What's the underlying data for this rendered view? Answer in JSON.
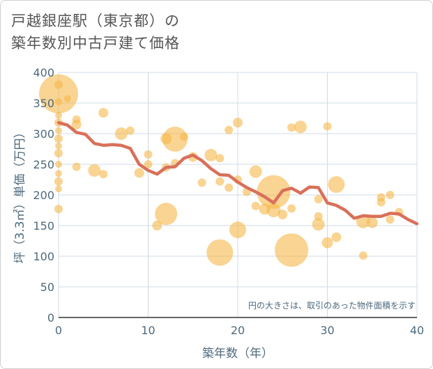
{
  "chart_data": {
    "type": "scatter",
    "title_lines": [
      "戸越銀座駅（東京都）の",
      "築年数別中古戸建て価格"
    ],
    "xlabel": "築年数（年）",
    "ylabel": "坪（3.3㎡）単価（万円）",
    "xlim": [
      0,
      40
    ],
    "ylim": [
      0,
      400
    ],
    "xticks": [
      0,
      10,
      20,
      30,
      40
    ],
    "yticks": [
      0,
      50,
      100,
      150,
      200,
      250,
      300,
      350,
      400
    ],
    "grid": true,
    "note": "円の大きさは、取引のあった物件面積を示す",
    "colors": {
      "bubble": "#f5b84a",
      "line": "#d9705a",
      "grid": "#cfdbe6",
      "text": "#4e6a7e"
    },
    "bubbles": [
      {
        "x": 0,
        "y": 365,
        "r": 28
      },
      {
        "x": 0,
        "y": 380,
        "r": 6
      },
      {
        "x": 0,
        "y": 352,
        "r": 5
      },
      {
        "x": 0,
        "y": 330,
        "r": 5
      },
      {
        "x": 0,
        "y": 318,
        "r": 6
      },
      {
        "x": 0,
        "y": 305,
        "r": 5
      },
      {
        "x": 0,
        "y": 292,
        "r": 6
      },
      {
        "x": 0,
        "y": 280,
        "r": 5
      },
      {
        "x": 0,
        "y": 268,
        "r": 6
      },
      {
        "x": 0,
        "y": 250,
        "r": 5
      },
      {
        "x": 0,
        "y": 235,
        "r": 5
      },
      {
        "x": 0,
        "y": 222,
        "r": 6
      },
      {
        "x": 0,
        "y": 210,
        "r": 5
      },
      {
        "x": 0,
        "y": 177,
        "r": 6
      },
      {
        "x": 1,
        "y": 357,
        "r": 5
      },
      {
        "x": 2,
        "y": 323,
        "r": 6
      },
      {
        "x": 2,
        "y": 315,
        "r": 7
      },
      {
        "x": 2,
        "y": 246,
        "r": 6
      },
      {
        "x": 4,
        "y": 240,
        "r": 9
      },
      {
        "x": 5,
        "y": 334,
        "r": 7
      },
      {
        "x": 5,
        "y": 234,
        "r": 6
      },
      {
        "x": 7,
        "y": 300,
        "r": 9
      },
      {
        "x": 8,
        "y": 305,
        "r": 6
      },
      {
        "x": 9,
        "y": 236,
        "r": 7
      },
      {
        "x": 10,
        "y": 266,
        "r": 6
      },
      {
        "x": 10,
        "y": 250,
        "r": 6
      },
      {
        "x": 11,
        "y": 150,
        "r": 7
      },
      {
        "x": 12,
        "y": 292,
        "r": 8
      },
      {
        "x": 12,
        "y": 245,
        "r": 6
      },
      {
        "x": 12,
        "y": 169,
        "r": 16
      },
      {
        "x": 13,
        "y": 291,
        "r": 18
      },
      {
        "x": 13,
        "y": 252,
        "r": 6
      },
      {
        "x": 14,
        "y": 295,
        "r": 6
      },
      {
        "x": 15,
        "y": 262,
        "r": 7
      },
      {
        "x": 16,
        "y": 220,
        "r": 6
      },
      {
        "x": 17,
        "y": 265,
        "r": 9
      },
      {
        "x": 18,
        "y": 260,
        "r": 6
      },
      {
        "x": 18,
        "y": 222,
        "r": 6
      },
      {
        "x": 18,
        "y": 106,
        "r": 19
      },
      {
        "x": 19,
        "y": 306,
        "r": 6
      },
      {
        "x": 19,
        "y": 212,
        "r": 6
      },
      {
        "x": 20,
        "y": 318,
        "r": 7
      },
      {
        "x": 20,
        "y": 225,
        "r": 6
      },
      {
        "x": 20,
        "y": 143,
        "r": 12
      },
      {
        "x": 21,
        "y": 205,
        "r": 6
      },
      {
        "x": 22,
        "y": 238,
        "r": 9
      },
      {
        "x": 22,
        "y": 182,
        "r": 6
      },
      {
        "x": 23,
        "y": 177,
        "r": 8
      },
      {
        "x": 24,
        "y": 205,
        "r": 24
      },
      {
        "x": 24,
        "y": 175,
        "r": 10
      },
      {
        "x": 25,
        "y": 168,
        "r": 7
      },
      {
        "x": 26,
        "y": 310,
        "r": 6
      },
      {
        "x": 26,
        "y": 178,
        "r": 6
      },
      {
        "x": 26,
        "y": 110,
        "r": 24
      },
      {
        "x": 27,
        "y": 311,
        "r": 9
      },
      {
        "x": 29,
        "y": 193,
        "r": 6
      },
      {
        "x": 29,
        "y": 165,
        "r": 6
      },
      {
        "x": 29,
        "y": 152,
        "r": 9
      },
      {
        "x": 30,
        "y": 312,
        "r": 6
      },
      {
        "x": 30,
        "y": 122,
        "r": 8
      },
      {
        "x": 31,
        "y": 217,
        "r": 12
      },
      {
        "x": 31,
        "y": 131,
        "r": 7
      },
      {
        "x": 34,
        "y": 157,
        "r": 10
      },
      {
        "x": 34,
        "y": 101,
        "r": 6
      },
      {
        "x": 35,
        "y": 155,
        "r": 8
      },
      {
        "x": 36,
        "y": 196,
        "r": 6
      },
      {
        "x": 36,
        "y": 188,
        "r": 6
      },
      {
        "x": 37,
        "y": 200,
        "r": 6
      },
      {
        "x": 37,
        "y": 160,
        "r": 6
      },
      {
        "x": 38,
        "y": 172,
        "r": 6
      }
    ],
    "trend": {
      "x": [
        0,
        1,
        2,
        3,
        4,
        5,
        6,
        7,
        8,
        9,
        10,
        11,
        12,
        13,
        14,
        15,
        16,
        17,
        18,
        19,
        20,
        21,
        22,
        23,
        24,
        25,
        26,
        27,
        28,
        29,
        30,
        31,
        32,
        33,
        34,
        35,
        36,
        37,
        38,
        39,
        40
      ],
      "y": [
        318,
        314,
        302,
        299,
        284,
        281,
        282,
        281,
        276,
        250,
        240,
        234,
        245,
        246,
        260,
        265,
        256,
        243,
        233,
        232,
        221,
        212,
        205,
        197,
        187,
        207,
        211,
        203,
        213,
        212,
        187,
        183,
        175,
        162,
        166,
        165,
        165,
        170,
        169,
        160,
        153
      ]
    }
  }
}
